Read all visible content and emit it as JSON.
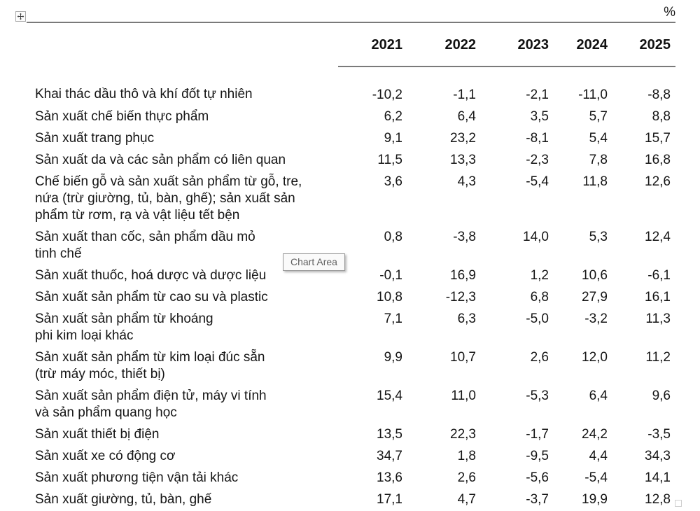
{
  "window": {
    "unit_label": "%",
    "tooltip_text": "Chart Area"
  },
  "colors": {
    "rule": "#7a7a7a",
    "text": "#151515",
    "tooltip_text": "#5f5f5f",
    "tooltip_bg": "#fafafa",
    "tooltip_border": "#979797"
  },
  "table": {
    "column_headers": [
      "2021",
      "2022",
      "2023",
      "2024",
      "2025"
    ],
    "rows": [
      {
        "label": "Khai thác dầu thô và khí đốt tự nhiên",
        "values": [
          "-10,2",
          "-1,1",
          "-2,1",
          "-11,0",
          "-8,8"
        ]
      },
      {
        "label": "Sản xuất chế biến thực phẩm",
        "values": [
          "6,2",
          "6,4",
          "3,5",
          "5,7",
          "8,8"
        ]
      },
      {
        "label": "Sản xuất trang phục",
        "values": [
          "9,1",
          "23,2",
          "-8,1",
          "5,4",
          "15,7"
        ]
      },
      {
        "label": "Sản xuất da và các sản phẩm có liên quan",
        "values": [
          "11,5",
          "13,3",
          "-2,3",
          "7,8",
          "16,8"
        ]
      },
      {
        "label": "Chế biến gỗ và sản xuất sản phẩm từ gỗ, tre,\nnứa (trừ giường, tủ, bàn, ghế); sản xuất sản\nphẩm từ rơm, rạ và vật liệu tết bện",
        "values": [
          "3,6",
          "4,3",
          "-5,4",
          "11,8",
          "12,6"
        ]
      },
      {
        "label": "Sản xuất than cốc, sản phẩm dầu mỏ\ntinh chế",
        "values": [
          "0,8",
          "-3,8",
          "14,0",
          "5,3",
          "12,4"
        ]
      },
      {
        "label": "Sản xuất thuốc, hoá dược và dược liệu",
        "values": [
          "-0,1",
          "16,9",
          "1,2",
          "10,6",
          "-6,1"
        ]
      },
      {
        "label": "Sản xuất sản phẩm từ cao su và plastic",
        "values": [
          "10,8",
          "-12,3",
          "6,8",
          "27,9",
          "16,1"
        ]
      },
      {
        "label": "Sản xuất sản phẩm từ khoáng\nphi kim loại khác",
        "values": [
          "7,1",
          "6,3",
          "-5,0",
          "-3,2",
          "11,3"
        ]
      },
      {
        "label": "Sản xuất sản phẩm từ kim loại đúc sẵn\n(trừ máy móc, thiết bị)",
        "values": [
          "9,9",
          "10,7",
          "2,6",
          "12,0",
          "11,2"
        ]
      },
      {
        "label": "Sản xuất sản phẩm điện tử, máy vi tính\nvà sản phẩm quang học",
        "values": [
          "15,4",
          "11,0",
          "-5,3",
          "6,4",
          "9,6"
        ]
      },
      {
        "label": "Sản xuất thiết bị điện",
        "values": [
          "13,5",
          "22,3",
          "-1,7",
          "24,2",
          "-3,5"
        ]
      },
      {
        "label": "Sản xuất xe có động cơ",
        "values": [
          "34,7",
          "1,8",
          "-9,5",
          "4,4",
          "34,3"
        ]
      },
      {
        "label": "Sản xuất phương tiện vận tải khác",
        "values": [
          "13,6",
          "2,6",
          "-5,6",
          "-5,4",
          "14,1"
        ]
      },
      {
        "label": "Sản xuất giường, tủ, bàn, ghế",
        "values": [
          "17,1",
          "4,7",
          "-3,7",
          "19,9",
          "12,8"
        ]
      }
    ]
  },
  "chart_data": {
    "type": "table",
    "unit": "%",
    "columns": [
      "2021",
      "2022",
      "2023",
      "2024",
      "2025"
    ],
    "series": [
      {
        "name": "Khai thác dầu thô và khí đốt tự nhiên",
        "values": [
          -10.2,
          -1.1,
          -2.1,
          -11.0,
          -8.8
        ]
      },
      {
        "name": "Sản xuất chế biến thực phẩm",
        "values": [
          6.2,
          6.4,
          3.5,
          5.7,
          8.8
        ]
      },
      {
        "name": "Sản xuất trang phục",
        "values": [
          9.1,
          23.2,
          -8.1,
          5.4,
          15.7
        ]
      },
      {
        "name": "Sản xuất da và các sản phẩm có liên quan",
        "values": [
          11.5,
          13.3,
          -2.3,
          7.8,
          16.8
        ]
      },
      {
        "name": "Chế biến gỗ và sản xuất sản phẩm từ gỗ, tre, nứa (trừ giường, tủ, bàn, ghế); sản xuất sản phẩm từ rơm, rạ và vật liệu tết bện",
        "values": [
          3.6,
          4.3,
          -5.4,
          11.8,
          12.6
        ]
      },
      {
        "name": "Sản xuất than cốc, sản phẩm dầu mỏ tinh chế",
        "values": [
          0.8,
          -3.8,
          14.0,
          5.3,
          12.4
        ]
      },
      {
        "name": "Sản xuất thuốc, hoá dược và dược liệu",
        "values": [
          -0.1,
          16.9,
          1.2,
          10.6,
          -6.1
        ]
      },
      {
        "name": "Sản xuất sản phẩm từ cao su và plastic",
        "values": [
          10.8,
          -12.3,
          6.8,
          27.9,
          16.1
        ]
      },
      {
        "name": "Sản xuất sản phẩm từ khoáng phi kim loại khác",
        "values": [
          7.1,
          6.3,
          -5.0,
          -3.2,
          11.3
        ]
      },
      {
        "name": "Sản xuất sản phẩm từ kim loại đúc sẵn (trừ máy móc, thiết bị)",
        "values": [
          9.9,
          10.7,
          2.6,
          12.0,
          11.2
        ]
      },
      {
        "name": "Sản xuất sản phẩm điện tử, máy vi tính và sản phẩm quang học",
        "values": [
          15.4,
          11.0,
          -5.3,
          6.4,
          9.6
        ]
      },
      {
        "name": "Sản xuất thiết bị điện",
        "values": [
          13.5,
          22.3,
          -1.7,
          24.2,
          -3.5
        ]
      },
      {
        "name": "Sản xuất xe có động cơ",
        "values": [
          34.7,
          1.8,
          -9.5,
          4.4,
          34.3
        ]
      },
      {
        "name": "Sản xuất phương tiện vận tải khác",
        "values": [
          13.6,
          2.6,
          -5.6,
          -5.4,
          14.1
        ]
      },
      {
        "name": "Sản xuất giường, tủ, bàn, ghế",
        "values": [
          17.1,
          4.7,
          -3.7,
          19.9,
          12.8
        ]
      }
    ]
  }
}
